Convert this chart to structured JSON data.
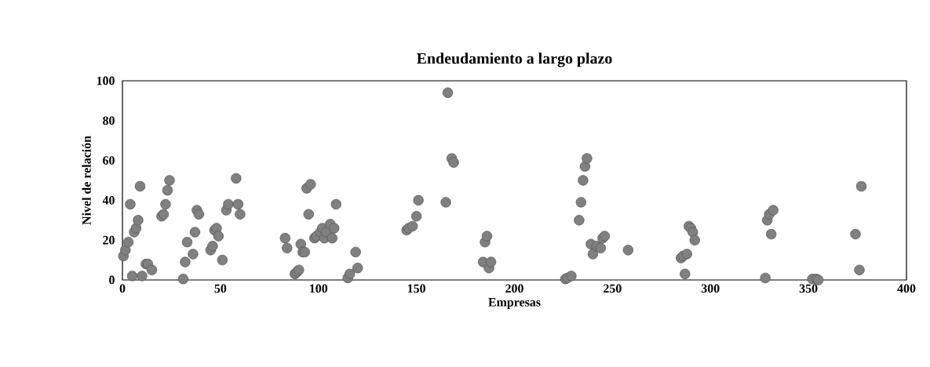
{
  "chart_data": {
    "type": "scatter",
    "title": "Endeudamiento a largo plazo",
    "xlabel": "Empresas",
    "ylabel": "Nivel de relación",
    "xlim": [
      0,
      400
    ],
    "xticks": [
      0,
      50,
      100,
      150,
      200,
      250,
      300,
      350,
      400
    ],
    "ylim": [
      0,
      100
    ],
    "yticks": [
      0,
      20,
      40,
      60,
      80,
      100
    ],
    "grid": false,
    "marker": "circle",
    "series": [
      {
        "color": "#808080",
        "x": [
          0.5,
          1.5,
          3,
          4,
          5,
          6,
          7,
          8,
          9,
          10,
          12,
          13,
          15,
          20,
          21,
          22,
          23,
          24,
          31,
          32,
          33,
          36,
          37,
          38,
          39,
          45,
          46,
          47,
          48,
          49,
          51,
          53,
          54,
          58,
          59,
          60,
          83,
          84,
          88,
          89,
          90,
          91,
          92,
          93,
          94,
          95,
          96,
          98,
          99,
          101,
          102,
          103,
          104,
          106,
          107,
          108,
          109,
          115,
          116,
          119,
          120,
          145,
          146,
          148,
          150,
          151,
          165,
          166,
          168,
          169,
          184,
          185,
          186,
          187,
          188,
          226,
          227,
          229,
          233,
          234,
          235,
          236,
          237,
          239,
          240,
          242,
          244,
          245,
          246,
          258,
          285,
          286,
          287,
          288,
          289,
          290,
          291,
          292,
          328,
          329,
          330,
          331,
          332,
          352,
          354,
          355,
          374,
          376,
          377
        ],
        "values": [
          12,
          15,
          19,
          38,
          2,
          24,
          26,
          30,
          47,
          2,
          8,
          8,
          5,
          32,
          33,
          38,
          45,
          50,
          0.5,
          9,
          19,
          13,
          24,
          35,
          33,
          15,
          17,
          25,
          26,
          22,
          10,
          35,
          38,
          51,
          38,
          33,
          21,
          16,
          3,
          4,
          5,
          18,
          14,
          14,
          46,
          33,
          48,
          21,
          22,
          24,
          26,
          21,
          24,
          28,
          21,
          26,
          38,
          1,
          3,
          14,
          6,
          25,
          26,
          27,
          32,
          40,
          39,
          94,
          61,
          59,
          9,
          19,
          22,
          6,
          9,
          0.5,
          1,
          2,
          30,
          39,
          50,
          57,
          61,
          18,
          13,
          17,
          16,
          21,
          22,
          15,
          11,
          12,
          3,
          13,
          27,
          26,
          24,
          20,
          1,
          30,
          33,
          23,
          35,
          0.5,
          0.5,
          0,
          23,
          5,
          47
        ]
      }
    ]
  }
}
